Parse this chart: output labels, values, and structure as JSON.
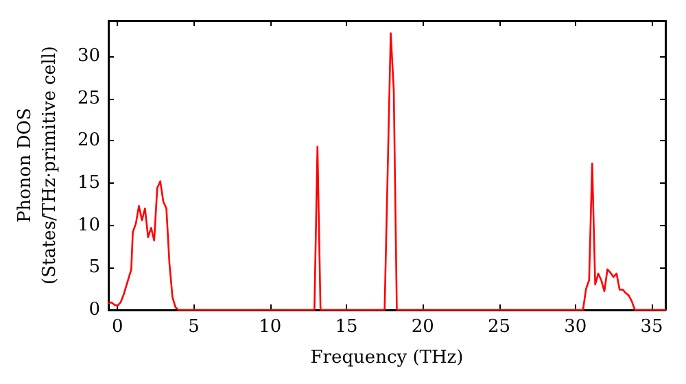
{
  "chart_data": {
    "type": "line",
    "xlabel": "Frequency (THz)",
    "ylabel": "Phonon DOS\n(States/THz·primitive cell)",
    "xlim": [
      -0.6,
      35.9
    ],
    "ylim": [
      0,
      34.2
    ],
    "xticks": [
      0,
      5,
      10,
      15,
      20,
      25,
      30,
      35
    ],
    "yticks": [
      0,
      5,
      10,
      15,
      20,
      25,
      30
    ],
    "grid": false,
    "marker": "none",
    "line_style": "solid",
    "series": [
      {
        "color": "#ff0000",
        "x": [
          -0.6,
          -0.4,
          -0.2,
          0,
          0.2,
          0.4,
          0.6,
          0.9,
          1.0,
          1.2,
          1.4,
          1.6,
          1.8,
          2.0,
          2.2,
          2.4,
          2.6,
          2.8,
          3.0,
          3.2,
          3.4,
          3.6,
          3.8,
          4.0,
          12.9,
          13.1,
          13.3,
          17.5,
          17.9,
          18.1,
          18.3,
          30.5,
          30.7,
          30.9,
          31.1,
          31.3,
          31.5,
          31.7,
          31.9,
          32.1,
          32.3,
          32.5,
          32.7,
          32.9,
          33.1,
          33.3,
          33.5,
          33.7,
          33.9,
          35.9
        ],
        "values": [
          0.8,
          0.9,
          0.6,
          0.5,
          0.9,
          1.8,
          3,
          4.8,
          9.2,
          10.2,
          12.3,
          10.6,
          12,
          8.6,
          9.7,
          8.2,
          14.4,
          15.2,
          12.8,
          12,
          5.5,
          1.5,
          0.3,
          0,
          0,
          19.3,
          0,
          0,
          32.7,
          26,
          0,
          0,
          2.5,
          3.5,
          17.3,
          3,
          4.3,
          3.5,
          2.2,
          4.8,
          4.4,
          3.9,
          4.3,
          2.4,
          2.4,
          2,
          1.7,
          1,
          0,
          0
        ]
      }
    ]
  }
}
